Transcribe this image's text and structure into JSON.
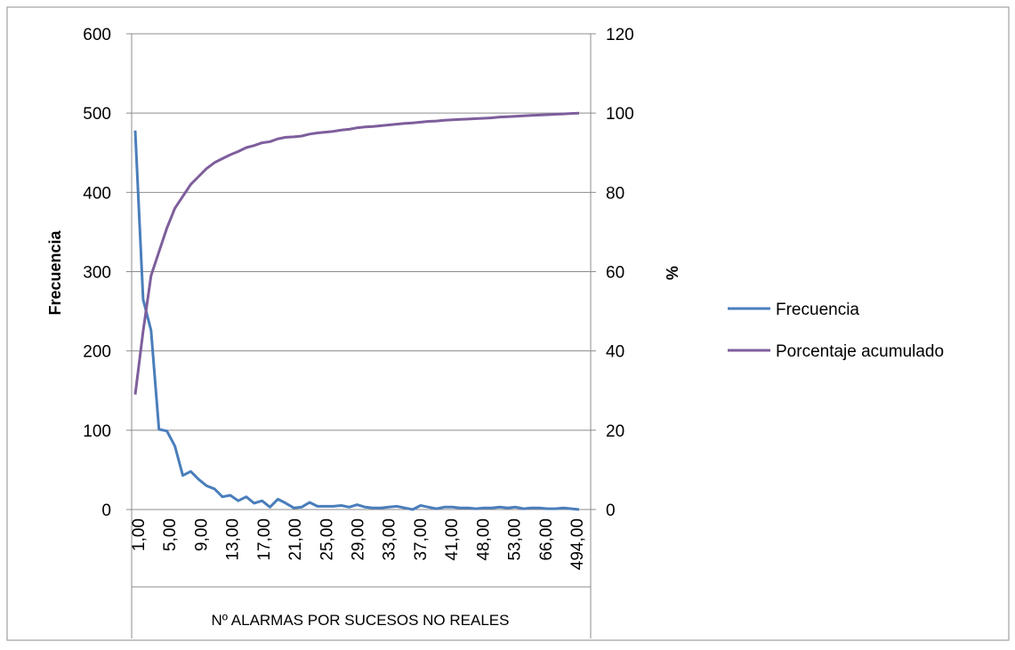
{
  "chart_data": {
    "type": "line",
    "xlabel": "Nº ALARMAS POR SUCESOS NO REALES",
    "ylabel": "Frecuencia",
    "y2label": "%",
    "ylim": [
      0,
      600
    ],
    "y2lim": [
      0,
      120
    ],
    "yticks": [
      0,
      100,
      200,
      300,
      400,
      500,
      600
    ],
    "y2ticks": [
      0,
      20,
      40,
      60,
      80,
      100,
      120
    ],
    "x_tick_labels": [
      "1,00",
      "5,00",
      "9,00",
      "13,00",
      "17,00",
      "21,00",
      "25,00",
      "29,00",
      "33,00",
      "37,00",
      "41,00",
      "48,00",
      "53,00",
      "66,00",
      "494,00"
    ],
    "grid": true,
    "legend_position": "right",
    "series": [
      {
        "name": "Frecuencia",
        "axis": "left",
        "color": "#4a7ebb",
        "values": [
          478,
          265,
          226,
          101,
          99,
          80,
          43,
          48,
          38,
          30,
          26,
          16,
          18,
          11,
          16,
          8,
          11,
          3,
          13,
          8,
          2,
          3,
          9,
          4,
          4,
          4,
          5,
          3,
          6,
          3,
          2,
          2,
          3,
          4,
          2,
          0,
          5,
          3,
          1,
          3,
          3,
          2,
          2,
          1,
          2,
          2,
          3,
          2,
          3,
          1,
          2,
          2,
          1,
          1,
          2,
          1,
          0
        ]
      },
      {
        "name": "Porcentaje acumulado",
        "axis": "right",
        "color": "#7e5e9c",
        "values": [
          29,
          45,
          59,
          65,
          71,
          76,
          79,
          82,
          84,
          86,
          87.5,
          88.5,
          89.5,
          90.3,
          91.3,
          91.8,
          92.5,
          92.8,
          93.5,
          93.9,
          94,
          94.2,
          94.7,
          95,
          95.2,
          95.4,
          95.7,
          95.9,
          96.3,
          96.5,
          96.6,
          96.8,
          97,
          97.2,
          97.4,
          97.5,
          97.7,
          97.9,
          98,
          98.2,
          98.3,
          98.4,
          98.5,
          98.6,
          98.7,
          98.8,
          99,
          99.1,
          99.2,
          99.3,
          99.4,
          99.5,
          99.6,
          99.7,
          99.8,
          99.9,
          100
        ]
      }
    ]
  }
}
